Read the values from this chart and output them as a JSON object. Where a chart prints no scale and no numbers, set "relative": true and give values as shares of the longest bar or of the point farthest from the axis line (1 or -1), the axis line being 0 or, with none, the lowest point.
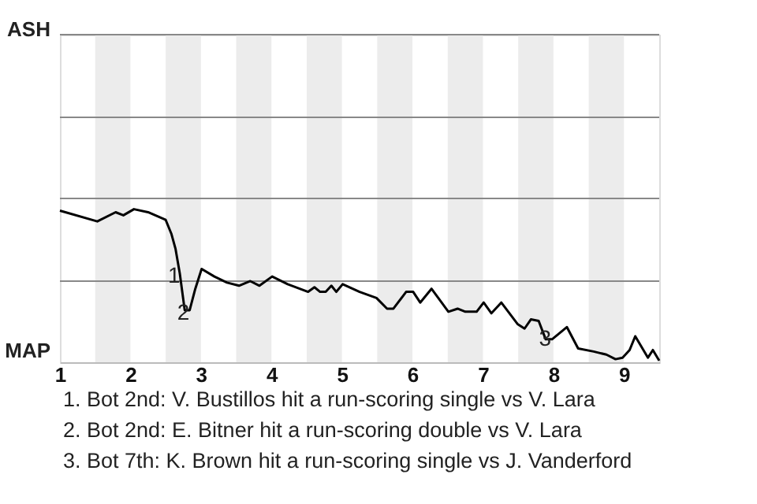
{
  "chart_data": {
    "type": "line",
    "x": [
      1.0,
      1.53,
      1.79,
      1.9,
      2.05,
      2.25,
      2.5,
      2.58,
      2.64,
      2.7,
      2.77,
      2.84,
      2.92,
      3.01,
      3.19,
      3.37,
      3.54,
      3.7,
      3.83,
      4.01,
      4.23,
      4.52,
      4.61,
      4.69,
      4.77,
      4.85,
      4.92,
      5.01,
      5.25,
      5.49,
      5.64,
      5.73,
      5.91,
      6.01,
      6.11,
      6.27,
      6.51,
      6.64,
      6.75,
      6.91,
      7.01,
      7.12,
      7.26,
      7.49,
      7.59,
      7.68,
      7.79,
      7.89,
      7.98,
      8.19,
      8.35,
      8.57,
      8.66,
      8.75,
      8.88,
      8.98,
      9.08,
      9.16,
      9.34,
      9.41,
      9.5
    ],
    "series": [
      {
        "color": "#000000",
        "values": [
          0.99,
          0.92,
          0.98,
          0.96,
          1,
          0.98,
          0.93,
          0.84,
          0.74,
          0.58,
          0.34,
          0.34,
          0.48,
          0.61,
          0.56,
          0.52,
          0.5,
          0.53,
          0.5,
          0.56,
          0.51,
          0.46,
          0.49,
          0.46,
          0.46,
          0.5,
          0.46,
          0.51,
          0.46,
          0.42,
          0.35,
          0.35,
          0.46,
          0.46,
          0.39,
          0.48,
          0.33,
          0.35,
          0.33,
          0.33,
          0.39,
          0.32,
          0.39,
          0.25,
          0.22,
          0.28,
          0.27,
          0.15,
          0.15,
          0.23,
          0.09,
          0.07,
          0.06,
          0.05,
          0.02,
          0.03,
          0.08,
          0.17,
          0.03,
          0.08,
          0.01
        ]
      }
    ],
    "relative": true,
    "xlim": [
      1,
      9.5
    ],
    "xticks": [
      1,
      2,
      3,
      4,
      5,
      6,
      7,
      8,
      9
    ],
    "ref_lines": [
      {
        "axis": "y",
        "value": 0.53,
        "color": "#888888"
      },
      {
        "axis": "y",
        "value": 1.07,
        "color": "#888888"
      },
      {
        "axis": "y",
        "value": 1.6,
        "color": "#888888"
      },
      {
        "axis": "y",
        "value": 2.14,
        "color": "#888888"
      }
    ],
    "bands": [
      {
        "axis": "x",
        "from": 1.5,
        "to": 2,
        "color": "#ececec"
      },
      {
        "axis": "x",
        "from": 2.5,
        "to": 3,
        "color": "#ececec"
      },
      {
        "axis": "x",
        "from": 3.5,
        "to": 4,
        "color": "#ececec"
      },
      {
        "axis": "x",
        "from": 4.5,
        "to": 5,
        "color": "#ececec"
      },
      {
        "axis": "x",
        "from": 5.5,
        "to": 6,
        "color": "#ececec"
      },
      {
        "axis": "x",
        "from": 6.5,
        "to": 7,
        "color": "#ececec"
      },
      {
        "axis": "x",
        "from": 7.5,
        "to": 8,
        "color": "#ececec"
      },
      {
        "axis": "x",
        "from": 8.5,
        "to": 9,
        "color": "#ececec"
      }
    ],
    "annotations": [
      "ASH",
      "MAP",
      {
        "text": "1",
        "x": 2.71,
        "y": 0.58
      },
      {
        "text": "2",
        "x": 2.84,
        "y": 0.34
      },
      {
        "text": "3",
        "x": 7.97,
        "y": 0.17
      },
      "1. Bot 2nd: V. Bustillos hit a run-scoring single vs V. Lara",
      "2. Bot 2nd: E. Bitner hit a run-scoring double vs V. Lara",
      "3. Bot 7th: K. Brown hit a run-scoring single vs J. Vanderford"
    ]
  }
}
